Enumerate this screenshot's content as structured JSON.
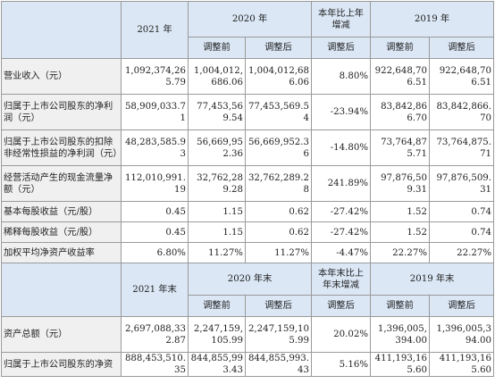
{
  "headers1": {
    "y2021": "2021 年",
    "y2020": "2020 年",
    "change": "本年比上年增减",
    "y2019": "2019 年",
    "before": "调整前",
    "after": "调整后"
  },
  "rows1": [
    {
      "label": "营业收入（元）",
      "values": [
        "1,092,374,265.79",
        "1,004,012,686.06",
        "1,004,012,686.06",
        "8.80%",
        "922,648,706.51",
        "922,648,706.51"
      ]
    },
    {
      "label": "归属于上市公司股东的净利润（元）",
      "values": [
        "58,909,033.71",
        "77,453,569.54",
        "77,453,569.54",
        "-23.94%",
        "83,842,866.70",
        "83,842,866.70"
      ]
    },
    {
      "label": "归属于上市公司股东的扣除非经常性损益的净利润（元）",
      "values": [
        "48,283,585.93",
        "56,669,952.36",
        "56,669,952.36",
        "-14.80%",
        "73,764,875.71",
        "73,764,875.71"
      ]
    },
    {
      "label": "经营活动产生的现金流量净额（元）",
      "values": [
        "112,010,991.19",
        "32,762,289.28",
        "32,762,289.28",
        "241.89%",
        "97,876,509.31",
        "97,876,509.31"
      ]
    },
    {
      "label": "基本每股收益（元/股）",
      "values": [
        "0.45",
        "1.15",
        "0.62",
        "-27.42%",
        "1.52",
        "0.74"
      ]
    },
    {
      "label": "稀释每股收益（元/股）",
      "values": [
        "0.45",
        "1.15",
        "0.62",
        "-27.42%",
        "1.52",
        "0.74"
      ]
    },
    {
      "label": "加权平均净资产收益率",
      "values": [
        "6.80%",
        "11.27%",
        "11.27%",
        "-4.47%",
        "22.27%",
        "22.27%"
      ]
    }
  ],
  "headers2": {
    "y2021": "2021 年末",
    "y2020": "2020 年末",
    "change": "本年末比上年末增减",
    "y2019": "2019 年末",
    "before": "调整前",
    "after": "调整后"
  },
  "rows2": [
    {
      "label": "资产总额（元）",
      "values": [
        "2,697,088,332.87",
        "2,247,159,105.99",
        "2,247,159,105.99",
        "20.02%",
        "1,396,005,394.00",
        "1,396,005,394.00"
      ]
    },
    {
      "label": "归属于上市公司股东的净资",
      "values": [
        "888,453,510.35",
        "844,855,993.43",
        "844,855,993.43",
        "5.16%",
        "411,193,165.60",
        "411,193,165.60"
      ]
    }
  ]
}
